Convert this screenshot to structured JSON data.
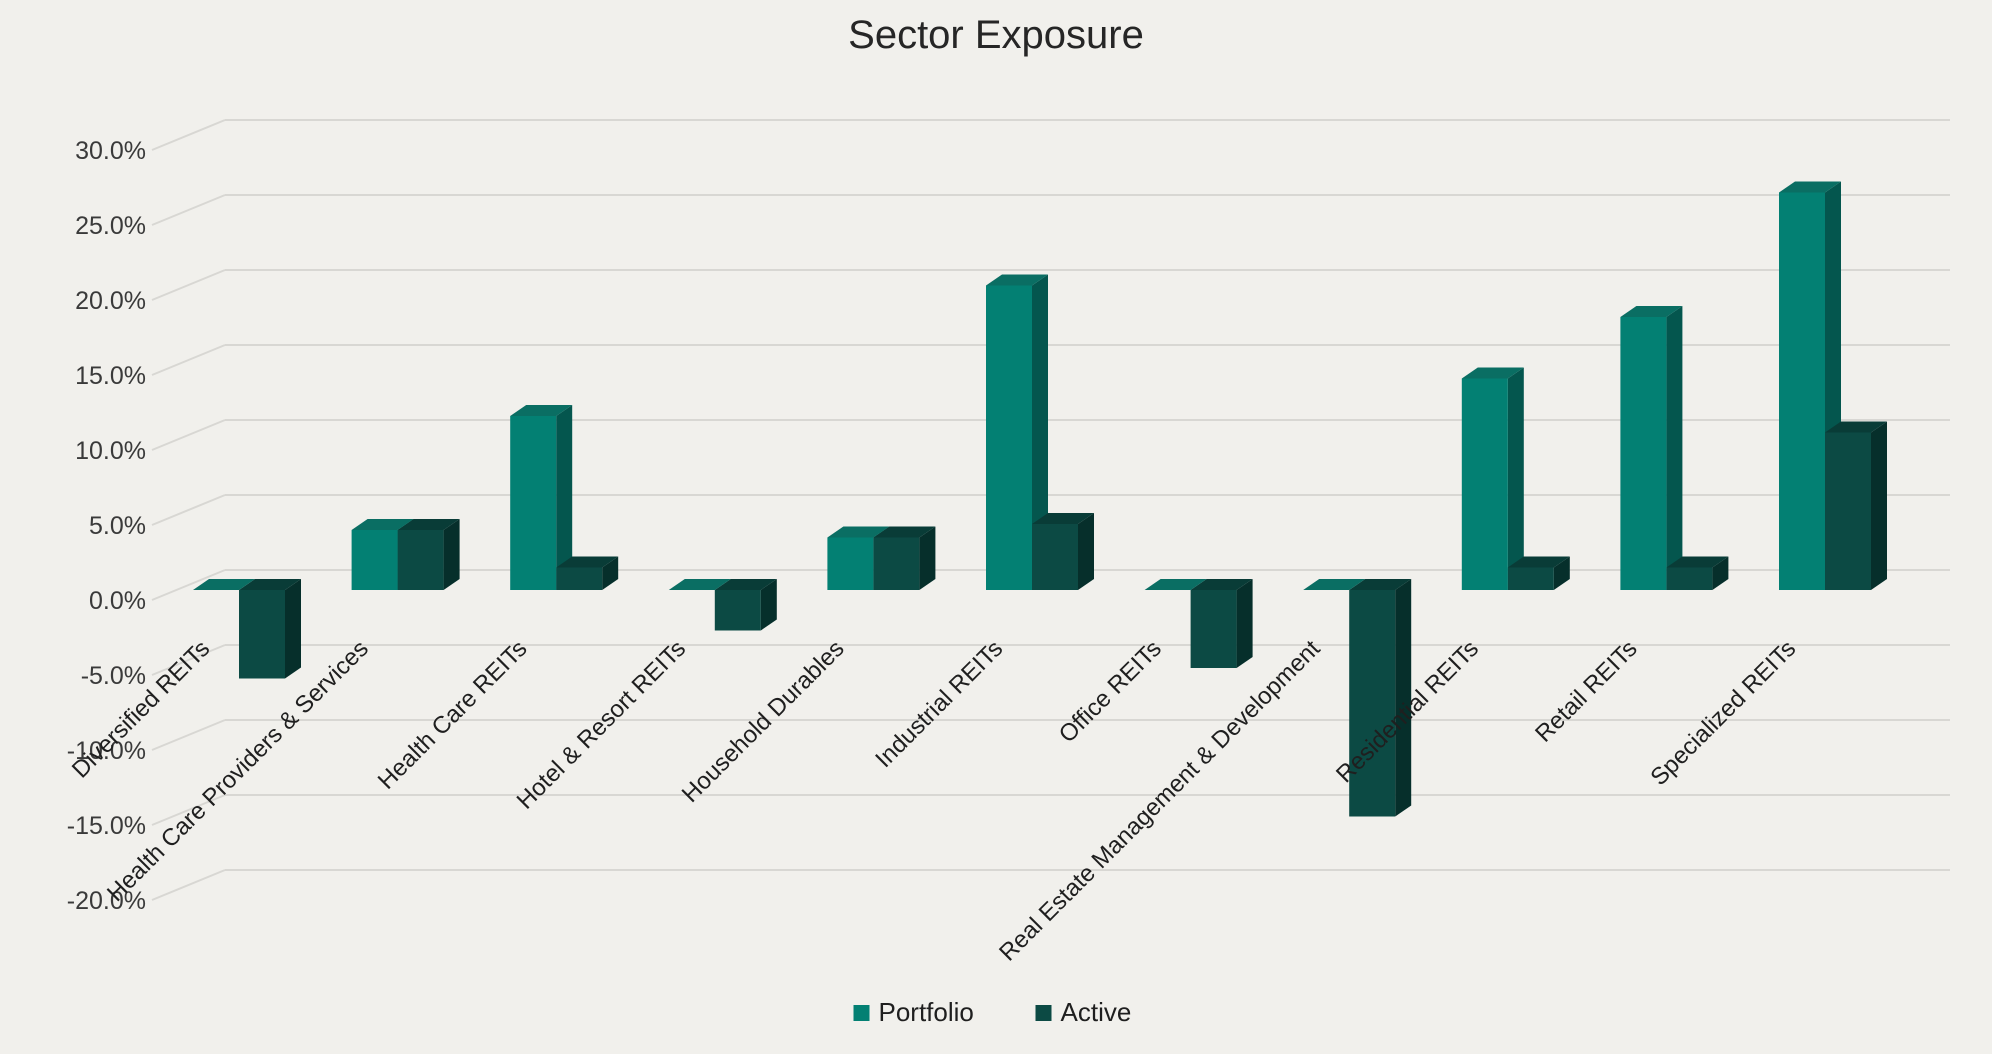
{
  "title": "Sector Exposure",
  "colors": {
    "background": "#F1F0EC",
    "gridline": "#D8D7D3",
    "portfolio_front": "#038073",
    "portfolio_top": "#0A6E63",
    "portfolio_side": "#04564E",
    "active_front": "#0C4A44",
    "active_top": "#093C37",
    "active_side": "#062F2B",
    "title_text": "#262626",
    "axis_text": "#3A3A3A",
    "category_text": "#1F1F1F"
  },
  "y_axis": {
    "tick_labels": [
      "30.0%",
      "25.0%",
      "20.0%",
      "15.0%",
      "10.0%",
      "5.0%",
      "0.0%",
      "-5.0%",
      "-10.0%",
      "-15.0%",
      "-20.0%"
    ],
    "max": 30,
    "min": -20,
    "step": 5
  },
  "legend": {
    "items": [
      {
        "label": "Portfolio",
        "color": "#038073"
      },
      {
        "label": "Active",
        "color": "#0C4A44"
      }
    ],
    "position": "bottom"
  },
  "chart_data": {
    "type": "bar",
    "style": "3d-clustered-column",
    "title": "Sector Exposure",
    "xlabel": "",
    "ylabel": "",
    "ylim": [
      -20,
      30
    ],
    "y_tick_step": 5,
    "y_tick_format": "0.0%",
    "grid": true,
    "legend_position": "bottom",
    "categories": [
      "Diversified REITs",
      "Health Care Providers & Services",
      "Health Care REITs",
      "Hotel & Resort REITs",
      "Household Durables",
      "Industrial REITs",
      "Office REITs",
      "Real Estate Management & Development",
      "Residential REITs",
      "Retail REITs",
      "Specialized REITs"
    ],
    "series": [
      {
        "name": "Portfolio",
        "values": [
          0.0,
          4.0,
          11.6,
          0.0,
          3.5,
          20.3,
          0.0,
          0.0,
          14.1,
          18.2,
          26.5
        ]
      },
      {
        "name": "Active",
        "values": [
          -5.9,
          4.0,
          1.5,
          -2.7,
          3.5,
          4.4,
          -5.2,
          -15.1,
          1.5,
          1.5,
          10.5
        ]
      }
    ]
  }
}
